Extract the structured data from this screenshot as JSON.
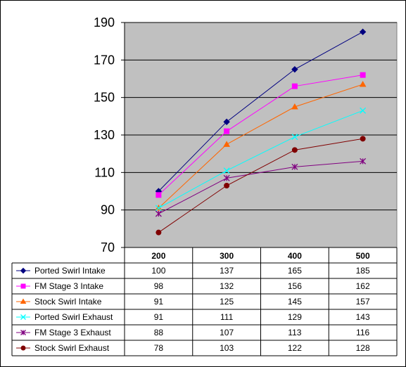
{
  "chart_data": {
    "type": "line",
    "title": "",
    "xlabel": "",
    "ylabel": "",
    "x": [
      "200",
      "300",
      "400",
      "500"
    ],
    "ylim": [
      70,
      190
    ],
    "yticks": [
      "190",
      "170",
      "150",
      "130",
      "110",
      "90",
      "70"
    ],
    "grid": true,
    "legend": "data-table-below",
    "plot_background": "#c0c0c0",
    "series": [
      {
        "name": "Ported Swirl Intake",
        "values": [
          100,
          137,
          165,
          185
        ],
        "color": "#000080",
        "marker": "diamond"
      },
      {
        "name": "FM Stage 3 Intake",
        "values": [
          98,
          132,
          156,
          162
        ],
        "color": "#ff00ff",
        "marker": "square"
      },
      {
        "name": "Stock Swirl Intake",
        "values": [
          91,
          125,
          145,
          157
        ],
        "color": "#ff6600",
        "marker": "triangle"
      },
      {
        "name": "Ported Swirl Exhaust",
        "values": [
          91,
          111,
          129,
          143
        ],
        "color": "#00ffff",
        "marker": "x"
      },
      {
        "name": "FM Stage 3 Exhaust",
        "values": [
          88,
          107,
          113,
          116
        ],
        "color": "#800080",
        "marker": "star"
      },
      {
        "name": "Stock Swirl Exhaust",
        "values": [
          78,
          103,
          122,
          128
        ],
        "color": "#800000",
        "marker": "circle"
      }
    ]
  }
}
